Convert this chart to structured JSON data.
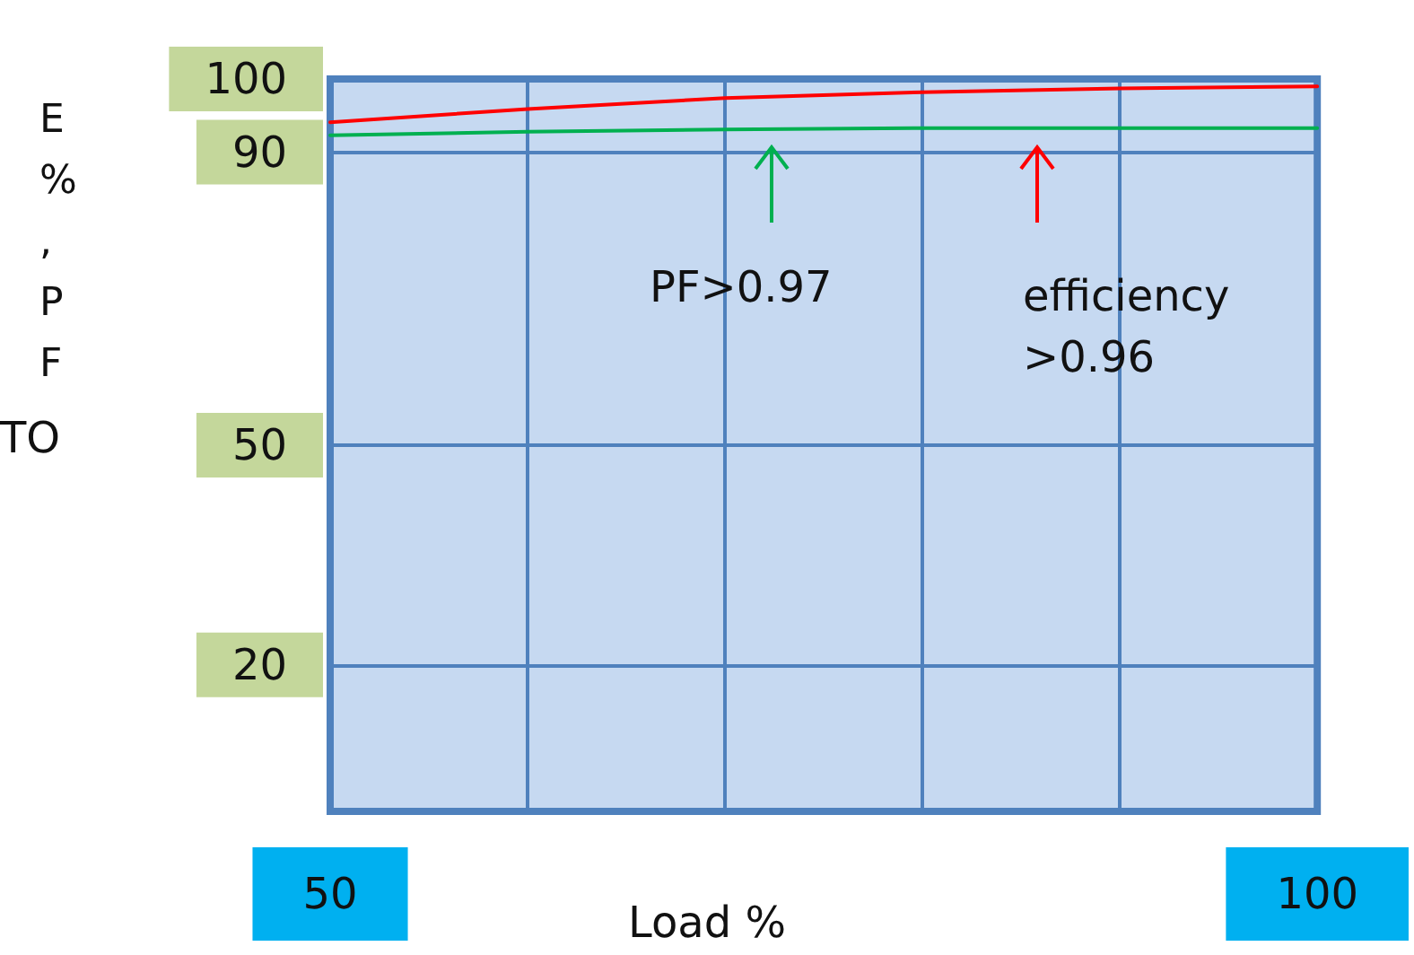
{
  "chart_data": {
    "type": "line",
    "xlabel": "Load %",
    "ylabel": "E%,PF",
    "x": [
      50,
      60,
      70,
      80,
      90,
      100
    ],
    "series": [
      {
        "color": "#ff0000",
        "values": [
          94.1,
          95.9,
          97.4,
          98.2,
          98.7,
          99.0
        ]
      },
      {
        "color": "#00b050",
        "values": [
          92.3,
          92.8,
          93.1,
          93.3,
          93.3,
          93.3
        ]
      }
    ],
    "xlim": [
      50,
      100
    ],
    "xticks": [
      50,
      {
        "value": 60,
        "label": null
      },
      {
        "value": 70,
        "label": null
      },
      {
        "value": 80,
        "label": null
      },
      {
        "value": 90,
        "label": null
      },
      100
    ],
    "ylim": [
      0,
      100
    ],
    "yticks": [
      20,
      50,
      90,
      100
    ],
    "grid": true,
    "marker": "none",
    "line_style": "solid",
    "annotations": [
      "TO",
      "PF>0.97",
      "efficiency\n>0.96"
    ]
  }
}
